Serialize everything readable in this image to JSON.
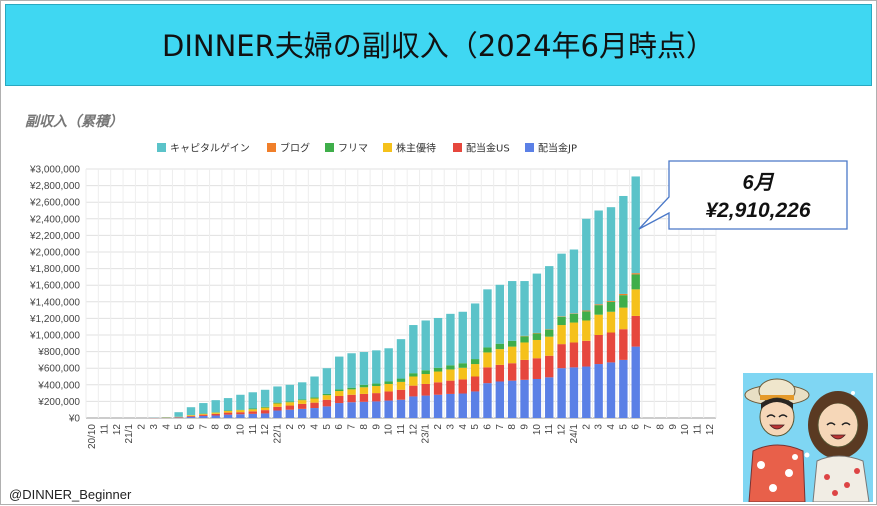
{
  "banner": {
    "title": "DINNER夫婦の副収入（2024年6月時点）"
  },
  "callout": {
    "line1": "6月",
    "line2": "¥2,910,226"
  },
  "credit": "@DINNER_Beginner",
  "colors": {
    "capital": "#5bc3c9",
    "blog": "#f07f2a",
    "flima": "#3fae4a",
    "yutai": "#f5c11b",
    "divus": "#e6473d",
    "divjp": "#5b80e6",
    "banner": "#3fd7f2"
  },
  "chart_data": {
    "type": "bar",
    "stacked": true,
    "title": "副収入（累積）",
    "xlabel": "",
    "ylabel": "",
    "ylim": [
      0,
      3000000
    ],
    "grid": true,
    "legend_position": "top",
    "categories": [
      "20/10",
      "11",
      "12",
      "21/1",
      "2",
      "3",
      "4",
      "5",
      "6",
      "7",
      "8",
      "9",
      "10",
      "11",
      "12",
      "22/1",
      "2",
      "3",
      "4",
      "5",
      "6",
      "7",
      "8",
      "9",
      "10",
      "11",
      "12",
      "23/1",
      "2",
      "3",
      "4",
      "5",
      "6",
      "7",
      "8",
      "9",
      "10",
      "11",
      "12",
      "24/1",
      "2",
      "3",
      "4",
      "5",
      "6",
      "7",
      "8",
      "9",
      "10",
      "11",
      "12"
    ],
    "y_ticks": [
      "¥0",
      "¥200,000",
      "¥400,000",
      "¥600,000",
      "¥800,000",
      "¥1,000,000",
      "¥1,200,000",
      "¥1,400,000",
      "¥1,600,000",
      "¥1,800,000",
      "¥2,000,000",
      "¥2,200,000",
      "¥2,400,000",
      "¥2,600,000",
      "¥2,800,000",
      "¥3,000,000"
    ],
    "series": [
      {
        "key": "divjp",
        "name": "配当金JP",
        "values": [
          0,
          0,
          0,
          0,
          0,
          0,
          0,
          5000,
          15000,
          25000,
          30000,
          40000,
          45000,
          50000,
          55000,
          90000,
          100000,
          110000,
          120000,
          140000,
          180000,
          190000,
          195000,
          200000,
          210000,
          220000,
          260000,
          270000,
          280000,
          290000,
          295000,
          320000,
          420000,
          440000,
          450000,
          460000,
          470000,
          490000,
          600000,
          610000,
          620000,
          650000,
          670000,
          700000,
          860000,
          null,
          null,
          null,
          null,
          null,
          null
        ]
      },
      {
        "key": "divus",
        "name": "配当金US",
        "values": [
          0,
          0,
          0,
          0,
          0,
          2000,
          3000,
          5000,
          10000,
          15000,
          20000,
          25000,
          25000,
          30000,
          40000,
          45000,
          50000,
          60000,
          65000,
          80000,
          85000,
          90000,
          95000,
          100000,
          110000,
          120000,
          130000,
          140000,
          150000,
          160000,
          170000,
          180000,
          190000,
          200000,
          210000,
          240000,
          250000,
          260000,
          290000,
          300000,
          310000,
          350000,
          360000,
          370000,
          370000,
          null,
          null,
          null,
          null,
          null,
          null
        ]
      },
      {
        "key": "yutai",
        "name": "株主優待",
        "values": [
          0,
          0,
          0,
          0,
          0,
          0,
          2000,
          5000,
          10000,
          10000,
          15000,
          20000,
          25000,
          25000,
          30000,
          40000,
          40000,
          45000,
          50000,
          55000,
          60000,
          65000,
          80000,
          85000,
          90000,
          95000,
          110000,
          120000,
          130000,
          135000,
          140000,
          150000,
          180000,
          190000,
          200000,
          210000,
          220000,
          230000,
          230000,
          240000,
          245000,
          245000,
          250000,
          260000,
          320000,
          null,
          null,
          null,
          null,
          null,
          null
        ]
      },
      {
        "key": "flima",
        "name": "フリマ",
        "values": [
          0,
          0,
          0,
          0,
          0,
          0,
          0,
          0,
          0,
          5000,
          5000,
          5000,
          5000,
          10000,
          10000,
          10000,
          10000,
          10000,
          15000,
          15000,
          20000,
          20000,
          30000,
          30000,
          30000,
          40000,
          40000,
          45000,
          45000,
          50000,
          55000,
          60000,
          60000,
          65000,
          70000,
          75000,
          80000,
          85000,
          100000,
          105000,
          110000,
          115000,
          120000,
          150000,
          180000,
          null,
          null,
          null,
          null,
          null,
          null
        ]
      },
      {
        "key": "blog",
        "name": "ブログ",
        "values": [
          0,
          0,
          0,
          0,
          0,
          0,
          0,
          0,
          0,
          0,
          0,
          0,
          0,
          0,
          0,
          0,
          0,
          0,
          0,
          0,
          0,
          0,
          0,
          0,
          0,
          0,
          0,
          0,
          0,
          0,
          0,
          0,
          0,
          0,
          0,
          5000,
          5000,
          5000,
          5000,
          5000,
          10000,
          10000,
          10000,
          15000,
          15000,
          null,
          null,
          null,
          null,
          null,
          null
        ]
      },
      {
        "key": "capital",
        "name": "キャピタルゲイン",
        "values": [
          0,
          0,
          0,
          0,
          0,
          3000,
          5000,
          55000,
          95000,
          125000,
          145000,
          150000,
          180000,
          195000,
          205000,
          195000,
          200000,
          205000,
          250000,
          310000,
          395000,
          415000,
          395000,
          400000,
          400000,
          475000,
          580000,
          600000,
          600000,
          620000,
          620000,
          670000,
          700000,
          710000,
          720000,
          660000,
          715000,
          760000,
          755000,
          770000,
          1105000,
          1130000,
          1130000,
          1180000,
          1165226,
          null,
          null,
          null,
          null,
          null,
          null
        ]
      }
    ]
  }
}
